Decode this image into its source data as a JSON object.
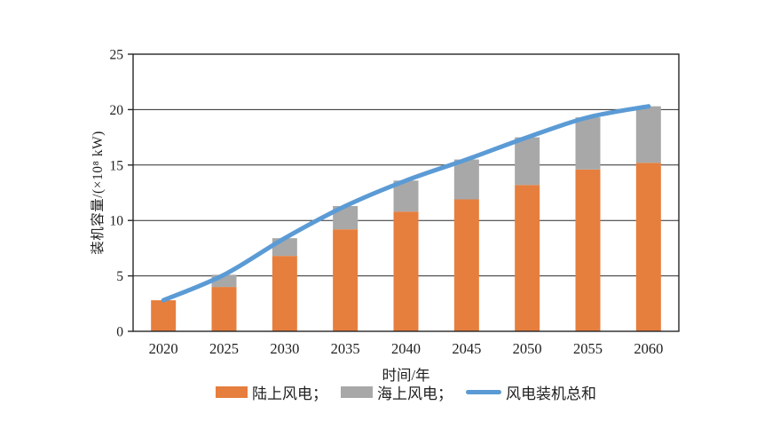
{
  "figure": {
    "background": "#ffffff",
    "text_color": "#1f1f1f",
    "axis_color": "#262626"
  },
  "chart_data": {
    "type": "bar",
    "subtype": "stacked-bars-with-total-line",
    "title": "",
    "categories": [
      "2020",
      "2025",
      "2030",
      "2035",
      "2040",
      "2045",
      "2050",
      "2055",
      "2060"
    ],
    "series": [
      {
        "name": "陆上风电",
        "type": "bar",
        "color": "#E67E3D",
        "values": [
          2.8,
          4.0,
          6.8,
          9.2,
          10.8,
          11.9,
          13.2,
          14.6,
          15.2
        ]
      },
      {
        "name": "海上风电",
        "type": "bar",
        "color": "#A8A8A8",
        "values": [
          0,
          1.1,
          1.6,
          2.1,
          2.8,
          3.6,
          4.3,
          4.7,
          5.1
        ]
      },
      {
        "name": "风电装机总和",
        "type": "line",
        "color": "#5B9BD5",
        "values": [
          2.8,
          5.1,
          8.4,
          11.3,
          13.6,
          15.5,
          17.5,
          19.3,
          20.3
        ]
      }
    ],
    "xlabel": "时间/年",
    "ylabel": "装机容量/(×10⁸ kW)",
    "ylim": [
      0,
      25
    ],
    "yticks": [
      0,
      5,
      10,
      15,
      20,
      25
    ],
    "grid": "horizontal",
    "plot_border": "box",
    "legend_position": "bottom"
  },
  "legend": {
    "items": [
      {
        "label": "陆上风电；",
        "color": "#E67E3D",
        "swatch": "rect"
      },
      {
        "label": "海上风电；",
        "color": "#A8A8A8",
        "swatch": "rect"
      },
      {
        "label": "风电装机总和",
        "color": "#5B9BD5",
        "swatch": "line"
      }
    ]
  }
}
